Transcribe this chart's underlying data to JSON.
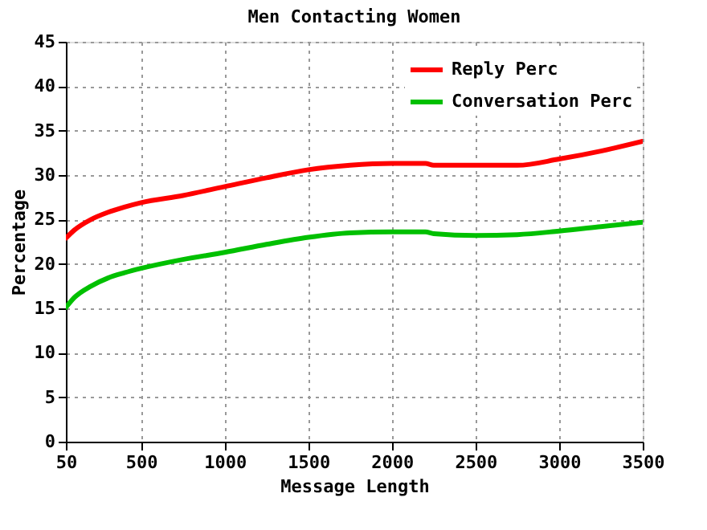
{
  "chart_data": {
    "type": "line",
    "title": "Men Contacting Women",
    "xlabel": "Message Length",
    "ylabel": "Percentage",
    "x": [
      50,
      100,
      200,
      300,
      400,
      500,
      750,
      1000,
      1250,
      1500,
      1750,
      2000,
      2200,
      2250,
      2500,
      2750,
      3000,
      3250,
      3500
    ],
    "series": [
      {
        "name": "Reply Perc",
        "color": "#ff0000",
        "values": [
          22.9,
          23.8,
          25.0,
          25.8,
          26.4,
          26.9,
          27.7,
          28.7,
          29.7,
          30.6,
          31.1,
          31.3,
          31.3,
          31.1,
          31.1,
          31.1,
          31.8,
          32.7,
          33.8
        ]
      },
      {
        "name": "Conversation Perc",
        "color": "#00c000",
        "values": [
          15.1,
          16.2,
          17.5,
          18.4,
          19.0,
          19.5,
          20.5,
          21.3,
          22.2,
          23.0,
          23.5,
          23.6,
          23.6,
          23.4,
          23.2,
          23.3,
          23.7,
          24.2,
          24.7
        ]
      }
    ],
    "xlim": [
      50,
      3500
    ],
    "xticks": [
      50,
      500,
      1000,
      1500,
      2000,
      2500,
      3000,
      3500
    ],
    "ylim": [
      0,
      45
    ],
    "yticks": [
      0,
      5,
      10,
      15,
      20,
      25,
      30,
      35,
      40,
      45
    ],
    "grid": true,
    "legend": "top right",
    "line_style": "solid",
    "marker": "none"
  }
}
